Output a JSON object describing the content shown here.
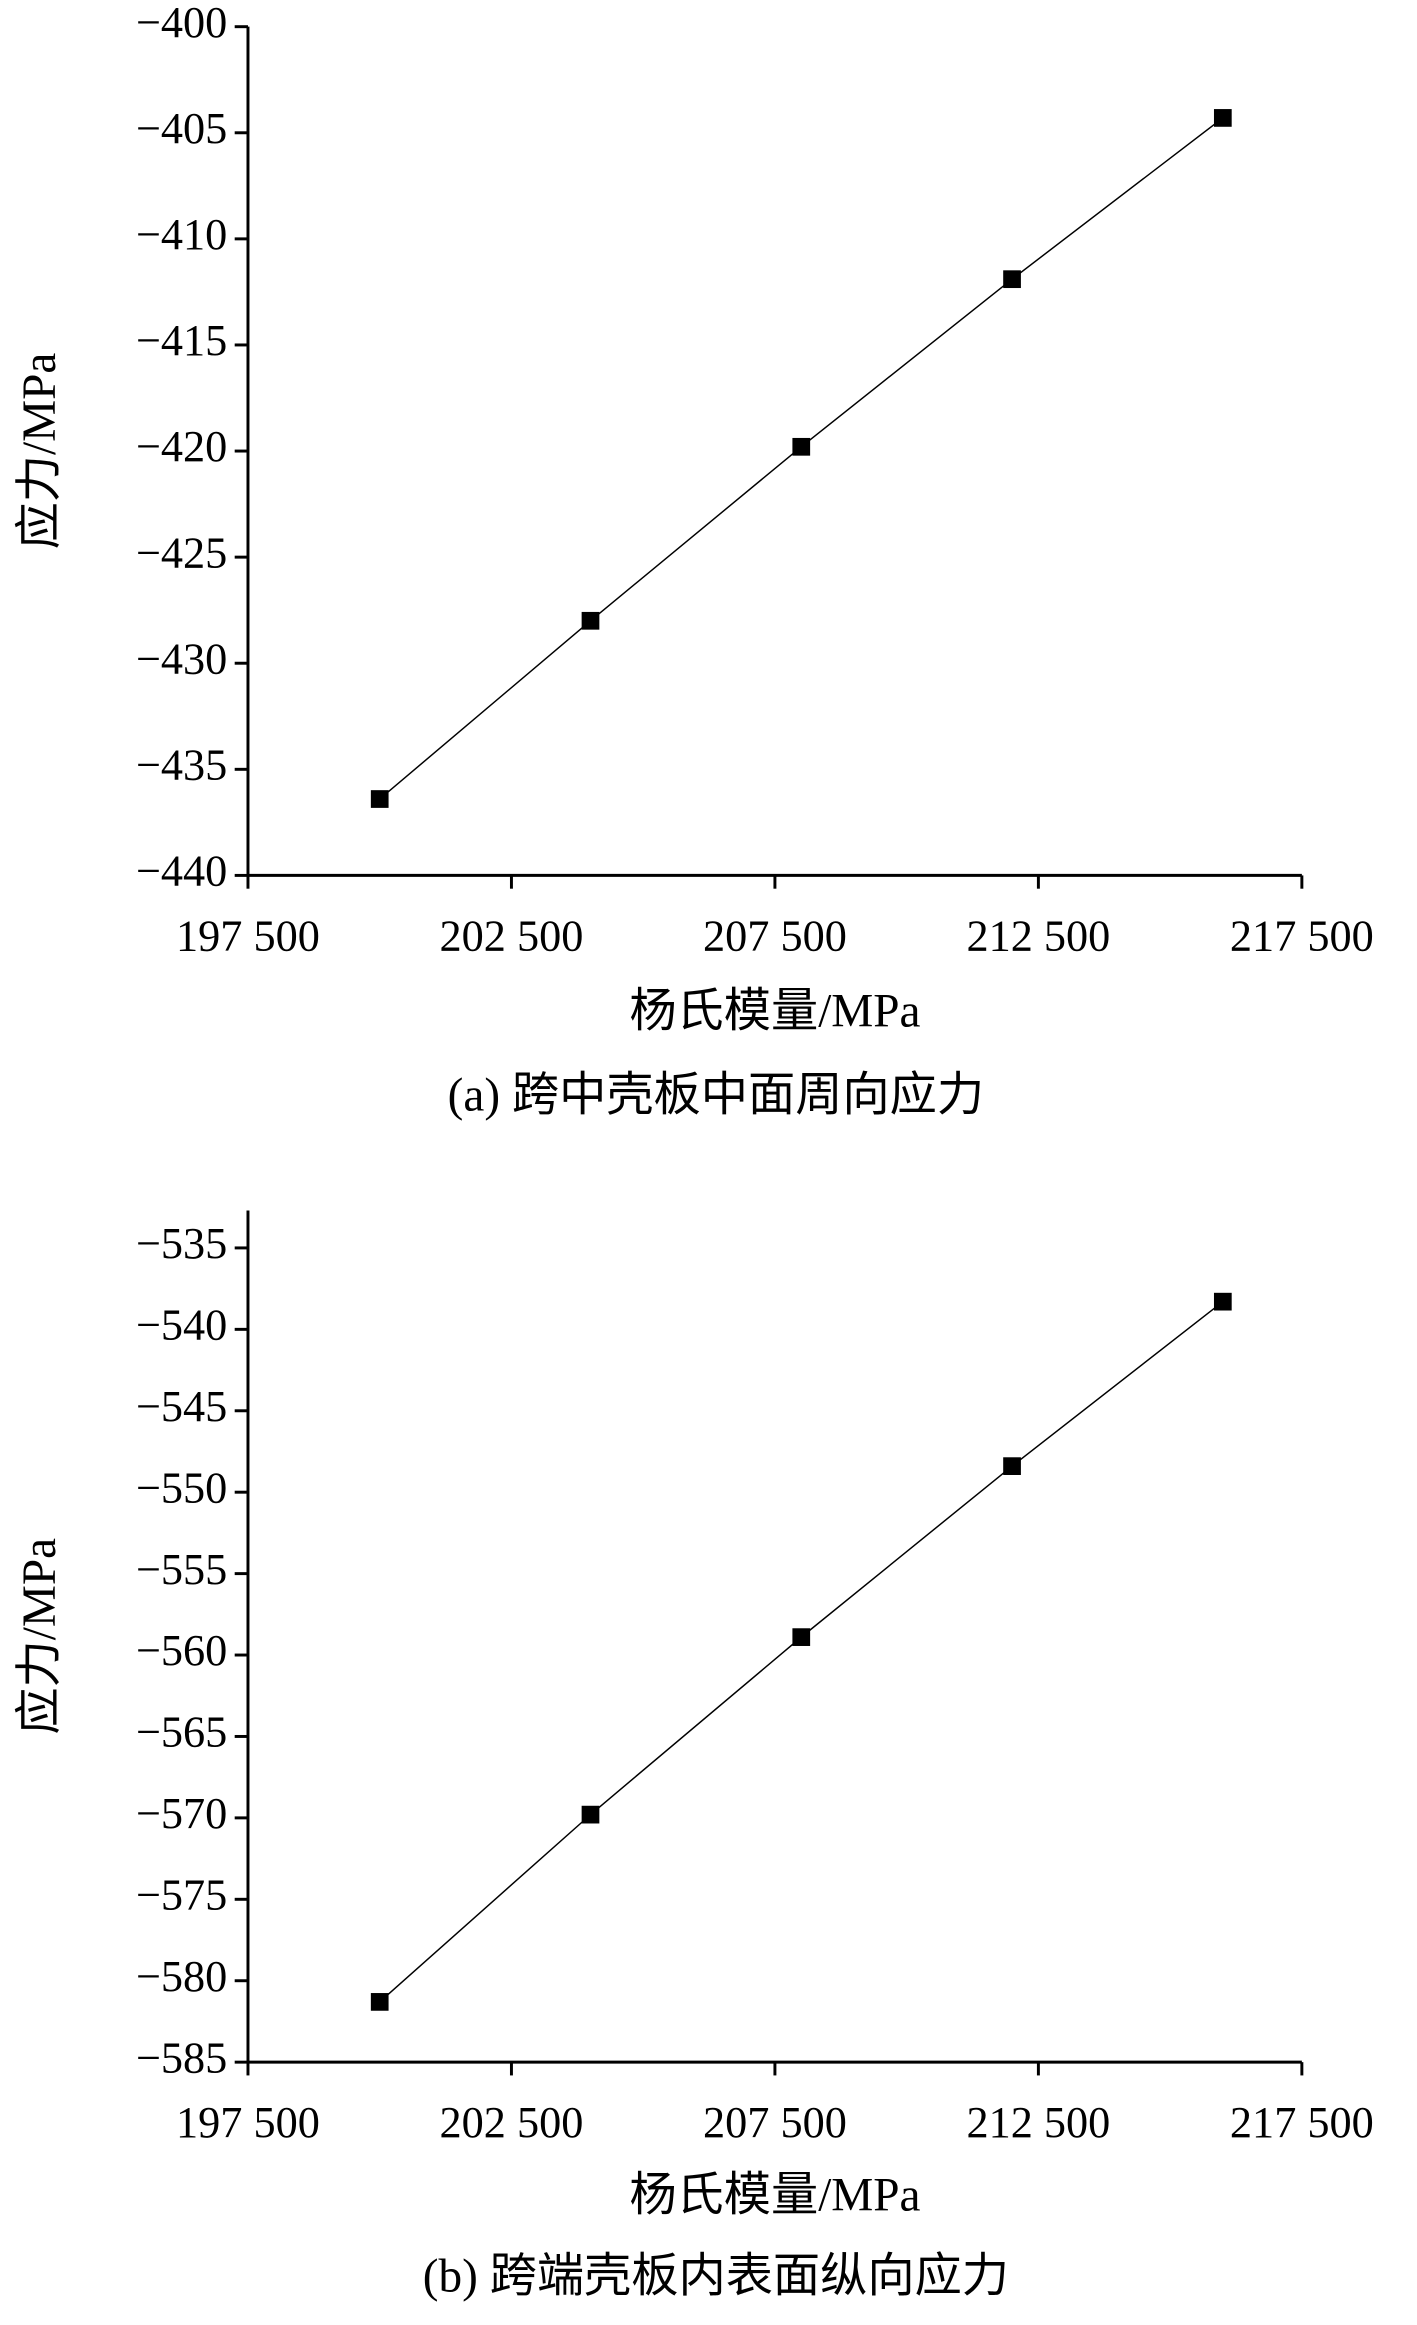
{
  "chart_data": [
    {
      "type": "line",
      "caption": "(a) 跨中壳板中面周向应力",
      "xlabel": "杨氏模量/MPa",
      "ylabel": "应力/MPa",
      "x": [
        200000,
        204000,
        208000,
        212000,
        216000
      ],
      "values": [
        -436.4,
        -428.0,
        -419.8,
        -411.9,
        -404.3
      ],
      "color": "#000000",
      "marker": "square",
      "xlim": [
        197500,
        217500
      ],
      "xticks": [
        {
          "value": 197500,
          "label": "197 500"
        },
        {
          "value": 202500,
          "label": "202 500"
        },
        {
          "value": 207500,
          "label": "207 500"
        },
        {
          "value": 212500,
          "label": "212 500"
        },
        {
          "value": 217500,
          "label": "217 500"
        }
      ],
      "ylim": [
        -440,
        -400
      ],
      "yticks": [
        {
          "value": -440,
          "label": "−440"
        },
        {
          "value": -435,
          "label": "−435"
        },
        {
          "value": -430,
          "label": "−430"
        },
        {
          "value": -425,
          "label": "−425"
        },
        {
          "value": -420,
          "label": "−420"
        },
        {
          "value": -415,
          "label": "−415"
        },
        {
          "value": -410,
          "label": "−410"
        },
        {
          "value": -405,
          "label": "−405"
        },
        {
          "value": -400,
          "label": "−400"
        }
      ]
    },
    {
      "type": "line",
      "caption": "(b) 跨端壳板内表面纵向应力",
      "xlabel": "杨氏模量/MPa",
      "ylabel": "应力/MPa",
      "x": [
        200000,
        204000,
        208000,
        212000,
        216000
      ],
      "values": [
        -581.3,
        -569.8,
        -558.9,
        -548.4,
        -538.3
      ],
      "color": "#000000",
      "marker": "square",
      "xlim": [
        197500,
        217500
      ],
      "xticks": [
        {
          "value": 197500,
          "label": "197 500"
        },
        {
          "value": 202500,
          "label": "202 500"
        },
        {
          "value": 207500,
          "label": "207 500"
        },
        {
          "value": 212500,
          "label": "212 500"
        },
        {
          "value": 217500,
          "label": "217 500"
        }
      ],
      "ylim": [
        -585,
        -532.7
      ],
      "yticks": [
        {
          "value": -585,
          "label": "−585"
        },
        {
          "value": -580,
          "label": "−580"
        },
        {
          "value": -575,
          "label": "−575"
        },
        {
          "value": -570,
          "label": "−570"
        },
        {
          "value": -565,
          "label": "−565"
        },
        {
          "value": -560,
          "label": "−560"
        },
        {
          "value": -555,
          "label": "−555"
        },
        {
          "value": -550,
          "label": "−550"
        },
        {
          "value": -545,
          "label": "−545"
        },
        {
          "value": -540,
          "label": "−540"
        },
        {
          "value": -535,
          "label": "−535"
        }
      ]
    }
  ]
}
